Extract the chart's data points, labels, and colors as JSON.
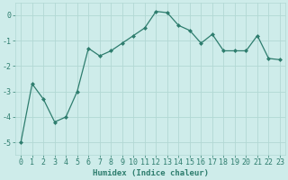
{
  "x": [
    0,
    1,
    2,
    3,
    4,
    5,
    6,
    7,
    8,
    9,
    10,
    11,
    12,
    13,
    14,
    15,
    16,
    17,
    18,
    19,
    20,
    21,
    22,
    23
  ],
  "y": [
    -5.0,
    -2.7,
    -3.3,
    -4.2,
    -4.0,
    -3.0,
    -1.3,
    -1.6,
    -1.4,
    -1.1,
    -0.8,
    -0.5,
    0.15,
    0.1,
    -0.4,
    -0.6,
    -1.1,
    -0.75,
    -1.4,
    -1.4,
    -1.4,
    -0.8,
    -1.7,
    -1.75
  ],
  "line_color": "#2e7d6e",
  "marker": "D",
  "marker_size": 2,
  "bg_color": "#ceecea",
  "grid_color": "#b2d8d4",
  "xlabel": "Humidex (Indice chaleur)",
  "ylim": [
    -5.5,
    0.5
  ],
  "yticks": [
    0,
    -1,
    -2,
    -3,
    -4,
    -5
  ],
  "tick_color": "#2e7d6e",
  "font_family": "monospace",
  "tick_fontsize": 6,
  "xlabel_fontsize": 6.5
}
